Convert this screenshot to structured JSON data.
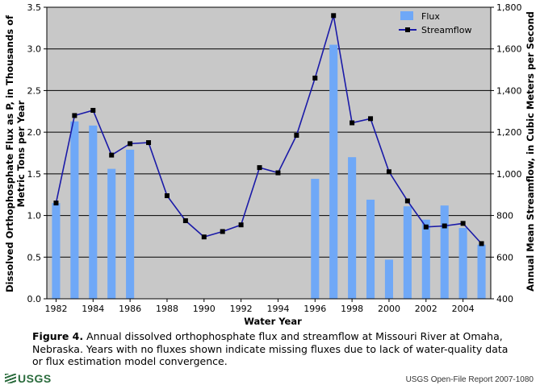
{
  "chart_data": {
    "type": "bar+line",
    "xlabel": "Water Year",
    "ylabel_left": "Dissolved Orthophosphate Flux as P, in Thousands of Metric Tons per Year",
    "ylabel_left_lines": [
      "Dissolved Orthophosphate Flux as P, in Thousands of",
      "Metric Tons per Year"
    ],
    "ylabel_right": "Annual Mean Streamflow, in Cubic Meters per Second",
    "ylim_left": [
      0,
      3.5
    ],
    "ylim_right": [
      400,
      1800
    ],
    "left_ticks": [
      "0.0",
      "0.5",
      "1.0",
      "1.5",
      "2.0",
      "2.5",
      "3.0",
      "3.5"
    ],
    "right_ticks": [
      "400",
      "600",
      "800",
      "1,000",
      "1,200",
      "1,400",
      "1,600",
      "1,800"
    ],
    "x_ticks": [
      "1982",
      "1984",
      "1986",
      "1988",
      "1990",
      "1992",
      "1994",
      "1996",
      "1998",
      "2000",
      "2002",
      "2004"
    ],
    "years": [
      1982,
      1983,
      1984,
      1985,
      1986,
      1987,
      1988,
      1989,
      1990,
      1991,
      1992,
      1993,
      1994,
      1995,
      1996,
      1997,
      1998,
      1999,
      2000,
      2001,
      2002,
      2003,
      2004,
      2005
    ],
    "flux_values": [
      1.15,
      2.13,
      2.08,
      1.56,
      1.79,
      null,
      null,
      null,
      null,
      null,
      null,
      null,
      null,
      null,
      1.44,
      3.05,
      1.7,
      1.19,
      0.47,
      1.11,
      0.95,
      1.12,
      0.85,
      0.65
    ],
    "streamflow_values": [
      860,
      1280,
      1305,
      1090,
      1145,
      1150,
      895,
      775,
      697,
      723,
      755,
      1030,
      1005,
      1185,
      1460,
      1760,
      1245,
      1265,
      1010,
      870,
      745,
      750,
      762,
      665
    ],
    "legend": {
      "flux": "Flux",
      "streamflow": "Streamflow",
      "position": "top-right"
    },
    "colors": {
      "flux": "#6fa8f7",
      "streamflow": "#1a1aa8",
      "marker": "#000000",
      "plot_bg": "#c8c8c8",
      "grid": "#000000"
    }
  },
  "caption": {
    "figure_label": "Figure 4.",
    "text": " Annual dissolved orthophosphate flux and streamflow at Missouri River at Omaha, Nebraska. Years with no fluxes shown indicate missing fluxes due to lack of water-quality data or flux estimation model convergence."
  },
  "footer": {
    "logo": "USGS",
    "report": "USGS Open-File Report 2007-1080"
  }
}
